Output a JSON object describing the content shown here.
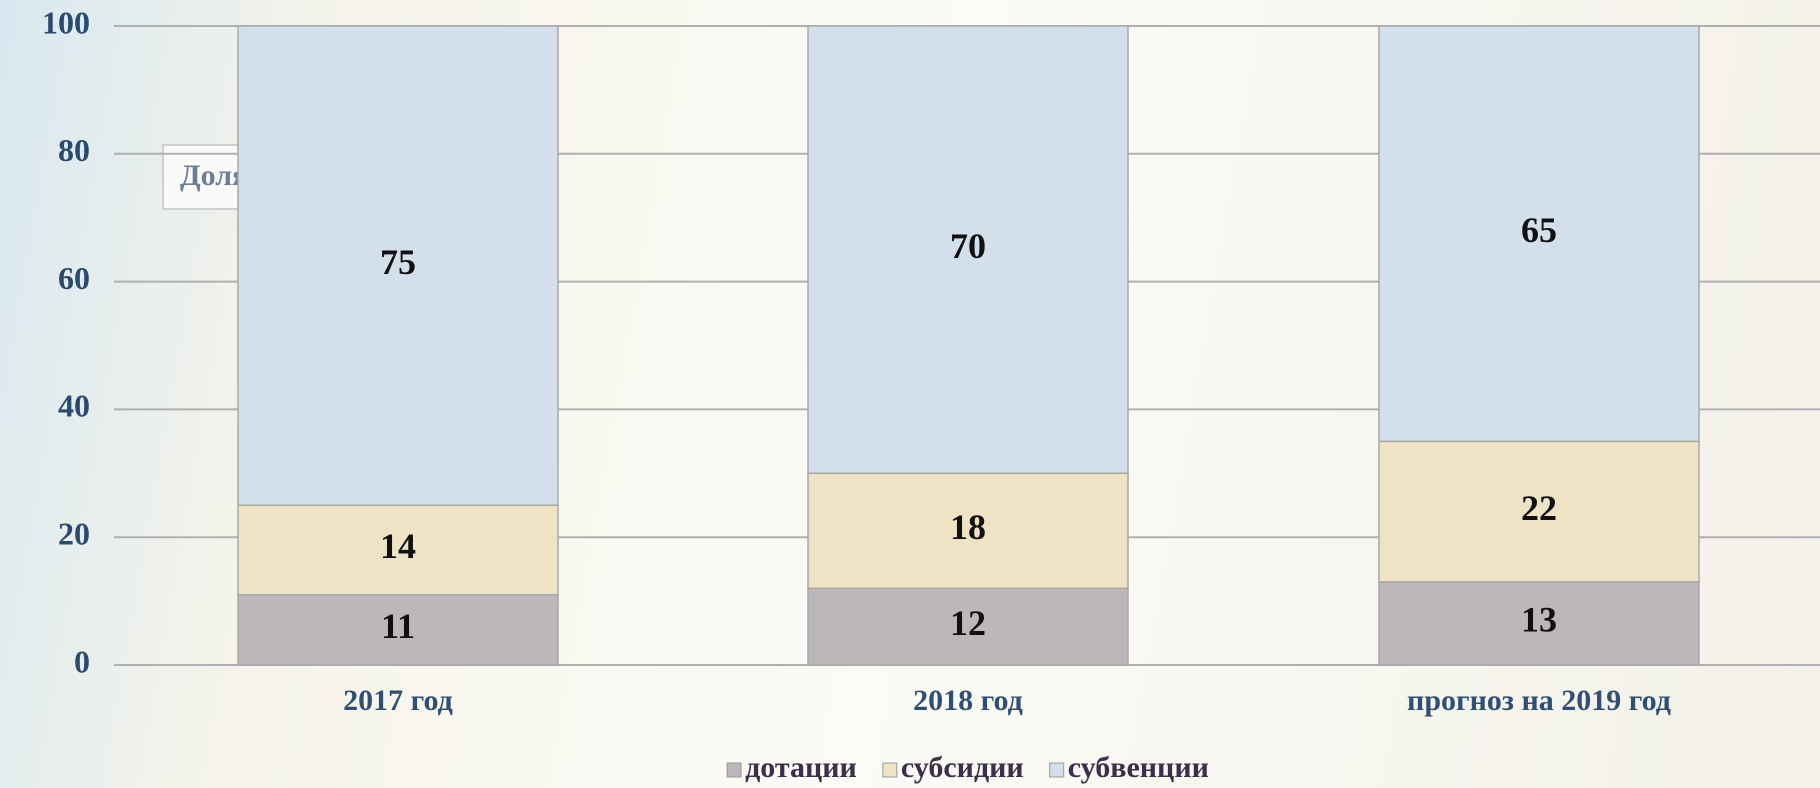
{
  "chart_data": {
    "type": "stacked_bar",
    "annotation": "Доля,%",
    "categories": [
      "2017 год",
      "2018 год",
      "прогноз на 2019 год"
    ],
    "series": [
      {
        "name": "дотации",
        "color": "#bdb6bb",
        "values": [
          11,
          12,
          13
        ]
      },
      {
        "name": "субсидии",
        "color": "#efe3c5",
        "values": [
          14,
          18,
          22
        ]
      },
      {
        "name": "субвенции",
        "color": "#d3dfeb",
        "values": [
          75,
          70,
          65
        ]
      }
    ],
    "ylim": [
      0,
      100
    ],
    "yticks": [
      0,
      20,
      40,
      60,
      80,
      100
    ],
    "grid": true,
    "legend": "bottom"
  }
}
